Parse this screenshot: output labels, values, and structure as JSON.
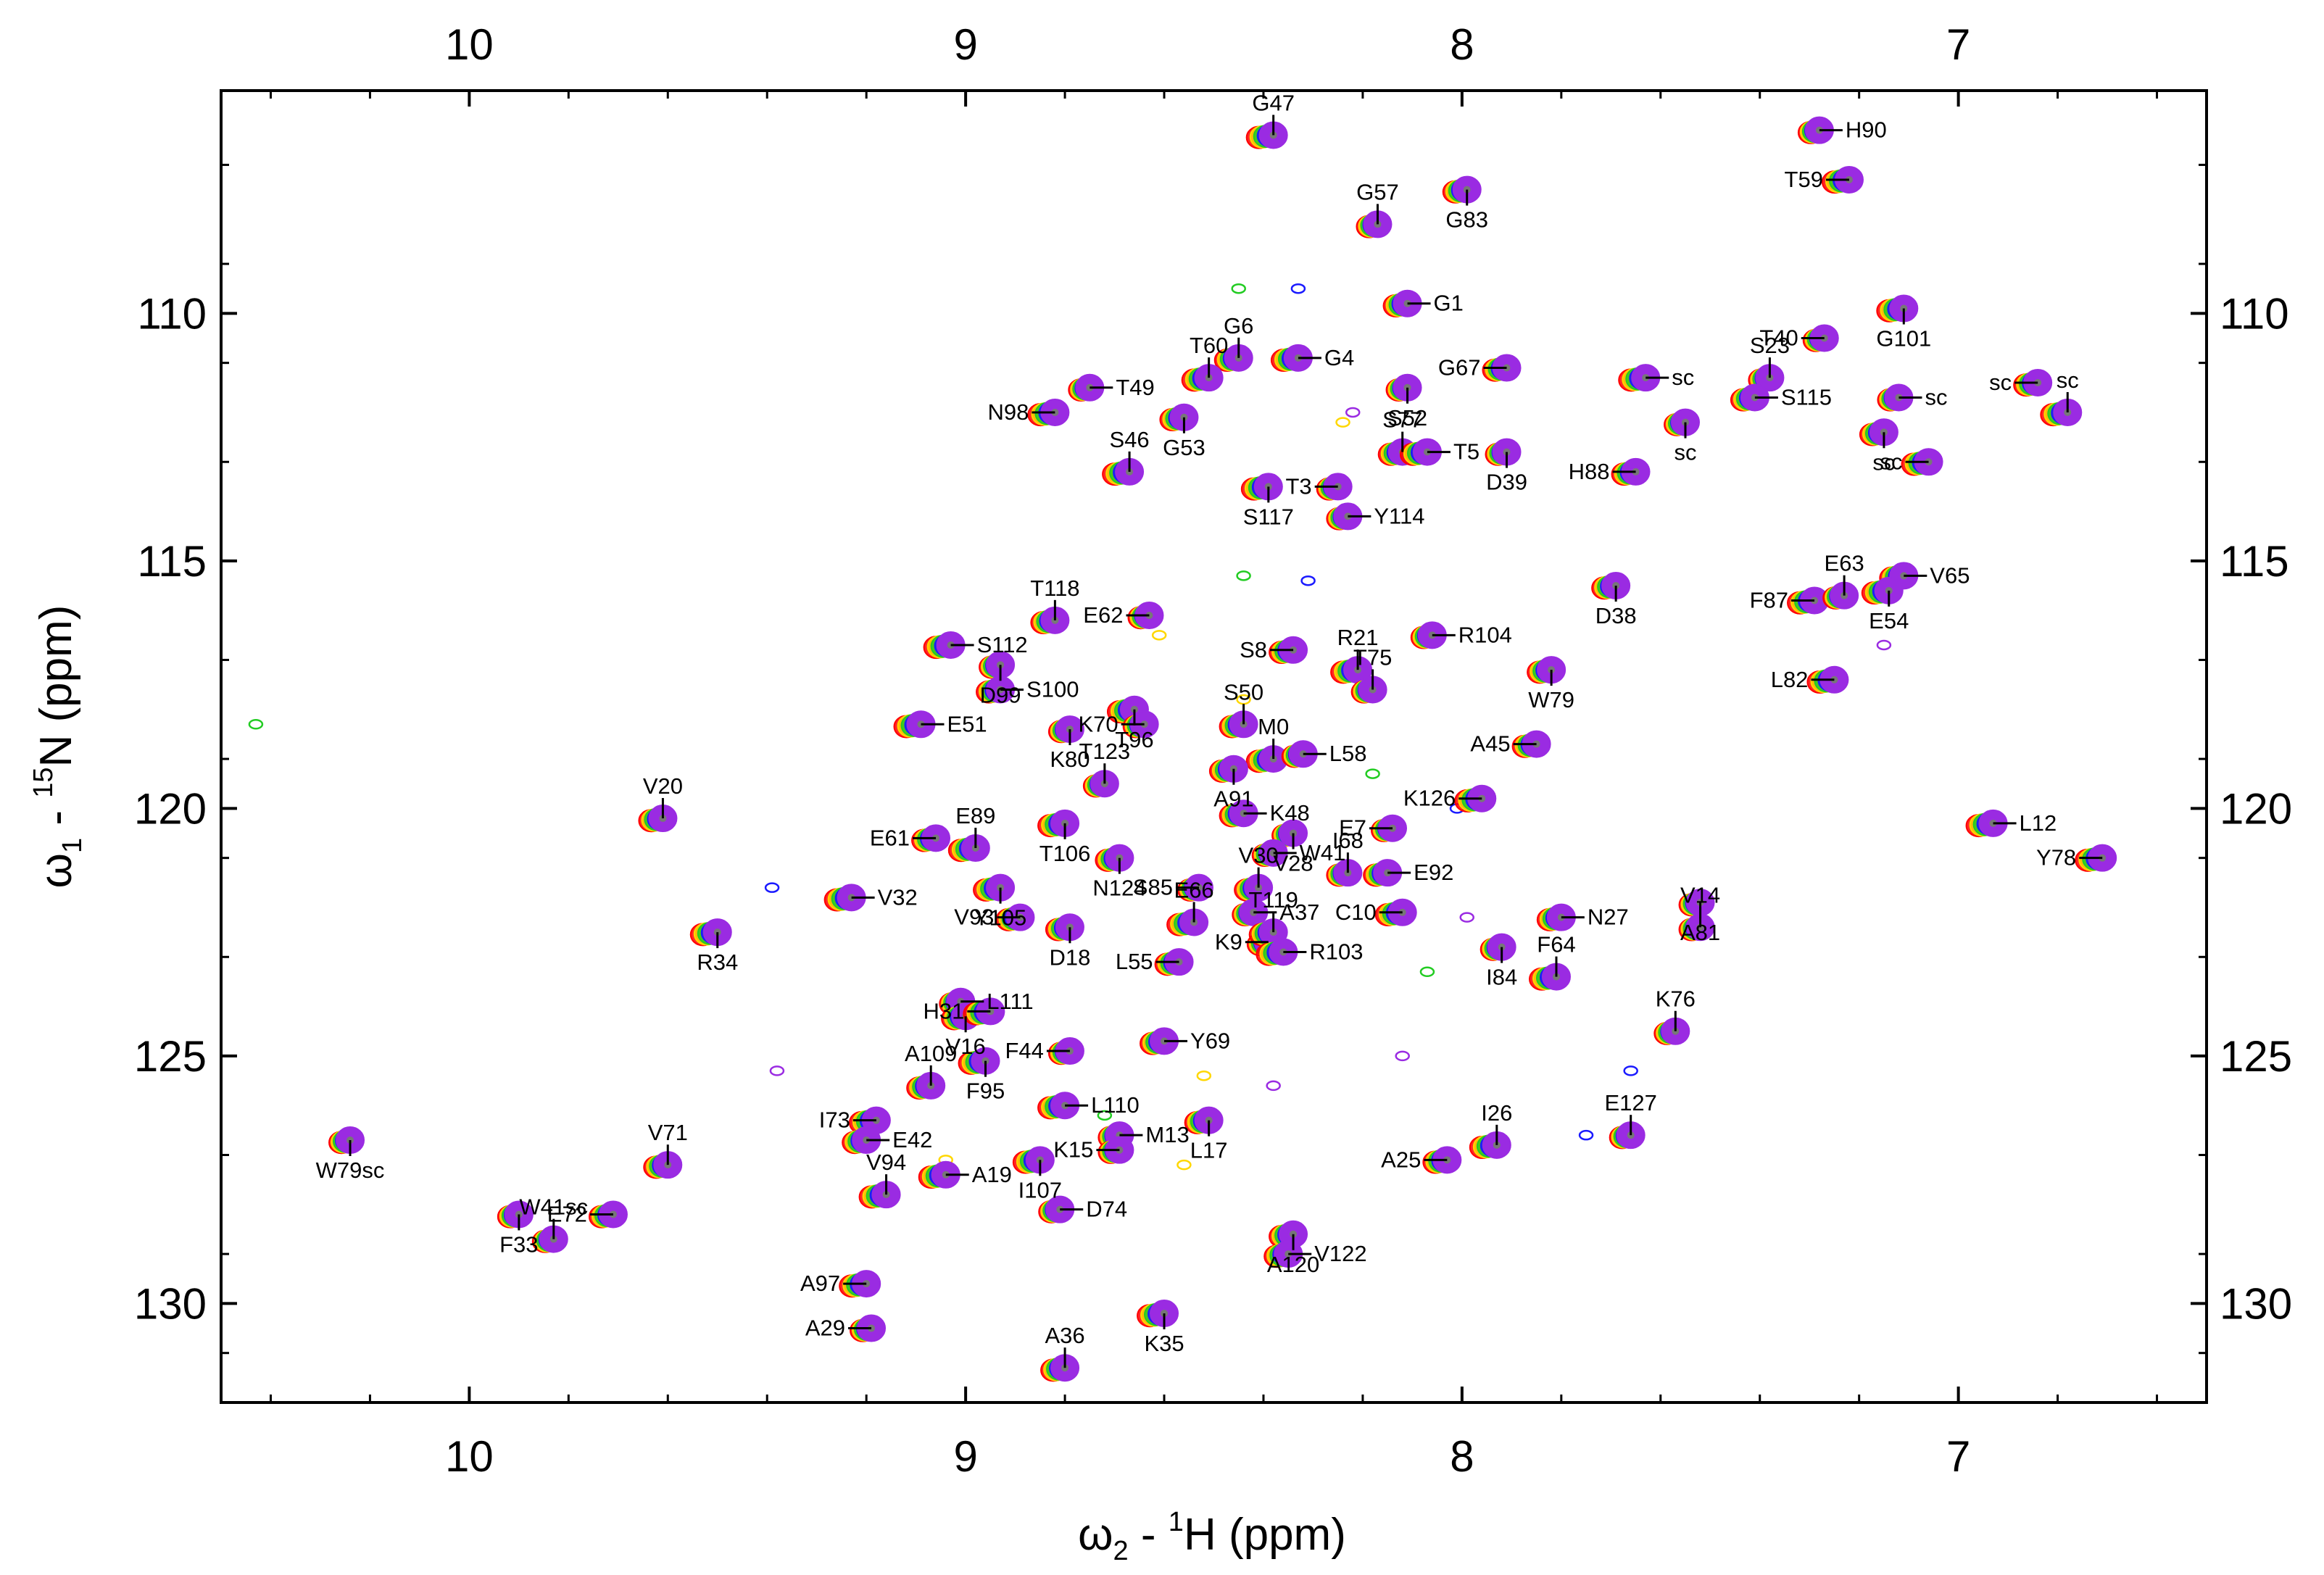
{
  "chart_data": {
    "type": "scatter",
    "title": "",
    "xlabel": {
      "prefix": "ω",
      "sub": "2",
      "mid": " - ",
      "sup": "1",
      "nucleus": "H",
      "unit": "  (ppm)"
    },
    "ylabel": {
      "prefix": "ω",
      "sub": "1",
      "mid": " - ",
      "sup": "15",
      "nucleus": "N",
      "unit": "  (ppm)"
    },
    "xlim": [
      10.5,
      6.5
    ],
    "ylim": [
      132,
      105.5
    ],
    "x_ticks": [
      10,
      9,
      8,
      7
    ],
    "y_ticks": [
      110,
      115,
      120,
      125,
      130
    ],
    "x_tick_labels": [
      "10",
      "9",
      "8",
      "7"
    ],
    "y_tick_labels": [
      "110",
      "115",
      "120",
      "125",
      "130"
    ],
    "series_colors": [
      "#ff0000",
      "#ffd700",
      "#22cc22",
      "#1a1aff",
      "#9a2be2"
    ],
    "reference_color": "#777777",
    "peaks": [
      {
        "label": "G47",
        "h": 8.38,
        "n": 106.4
      },
      {
        "label": "H90",
        "h": 7.28,
        "n": 106.3
      },
      {
        "label": "G83",
        "h": 7.99,
        "n": 107.5
      },
      {
        "label": "T59",
        "h": 7.22,
        "n": 107.3
      },
      {
        "label": "G57",
        "h": 8.17,
        "n": 108.2
      },
      {
        "label": "G1",
        "h": 8.11,
        "n": 109.8
      },
      {
        "label": "G101",
        "h": 7.11,
        "n": 109.9
      },
      {
        "label": "T40",
        "h": 7.27,
        "n": 110.5
      },
      {
        "label": "G6",
        "h": 8.45,
        "n": 110.9
      },
      {
        "label": "G4",
        "h": 8.33,
        "n": 110.9
      },
      {
        "label": "S52",
        "h": 8.11,
        "n": 111.5
      },
      {
        "label": "G67",
        "h": 7.91,
        "n": 111.1
      },
      {
        "label": "T60",
        "h": 8.51,
        "n": 111.3
      },
      {
        "label": "T49",
        "h": 8.75,
        "n": 111.5
      },
      {
        "label": "G53",
        "h": 8.56,
        "n": 112.1
      },
      {
        "label": "N98",
        "h": 8.82,
        "n": 112.0
      },
      {
        "label": "S23",
        "h": 7.38,
        "n": 111.3
      },
      {
        "label": "S115",
        "h": 7.41,
        "n": 111.7
      },
      {
        "label": "S117",
        "h": 8.39,
        "n": 113.5
      },
      {
        "label": "T3",
        "h": 8.25,
        "n": 113.5
      },
      {
        "label": "S77",
        "h": 8.12,
        "n": 112.8
      },
      {
        "label": "T5",
        "h": 8.07,
        "n": 112.8
      },
      {
        "label": "D39",
        "h": 7.91,
        "n": 112.8
      },
      {
        "label": "H88",
        "h": 7.65,
        "n": 113.2
      },
      {
        "label": "S46",
        "h": 8.67,
        "n": 113.2
      },
      {
        "label": "Y114",
        "h": 8.23,
        "n": 114.1
      },
      {
        "label": "D38",
        "h": 7.69,
        "n": 115.5
      },
      {
        "label": "F87",
        "h": 7.29,
        "n": 115.8
      },
      {
        "label": "E63",
        "h": 7.23,
        "n": 115.7
      },
      {
        "label": "V65",
        "h": 7.11,
        "n": 115.3
      },
      {
        "label": "E54",
        "h": 7.14,
        "n": 115.6
      },
      {
        "label": "E62",
        "h": 8.63,
        "n": 116.1
      },
      {
        "label": "T118",
        "h": 8.82,
        "n": 116.2
      },
      {
        "label": "S112",
        "h": 9.03,
        "n": 116.7
      },
      {
        "label": "D99",
        "h": 8.93,
        "n": 117.1
      },
      {
        "label": "S8",
        "h": 8.34,
        "n": 116.8
      },
      {
        "label": "R21",
        "h": 8.21,
        "n": 117.2
      },
      {
        "label": "R104",
        "h": 8.06,
        "n": 116.5
      },
      {
        "label": "W79",
        "h": 7.82,
        "n": 117.2
      },
      {
        "label": "L82",
        "h": 7.25,
        "n": 117.4
      },
      {
        "label": "T75",
        "h": 8.18,
        "n": 117.6
      },
      {
        "label": "S100",
        "h": 8.93,
        "n": 117.6
      },
      {
        "label": "T96",
        "h": 8.66,
        "n": 118.0
      },
      {
        "label": "K70",
        "h": 8.64,
        "n": 118.3
      },
      {
        "label": "S50",
        "h": 8.44,
        "n": 118.3
      },
      {
        "label": "E51",
        "h": 9.09,
        "n": 118.3
      },
      {
        "label": "K80",
        "h": 8.79,
        "n": 118.4
      },
      {
        "label": "A45",
        "h": 7.85,
        "n": 118.7
      },
      {
        "label": "M0",
        "h": 8.38,
        "n": 119.0
      },
      {
        "label": "L58",
        "h": 8.32,
        "n": 118.9
      },
      {
        "label": "A91",
        "h": 8.46,
        "n": 119.2
      },
      {
        "label": "K126",
        "h": 7.96,
        "n": 119.8
      },
      {
        "label": "T123",
        "h": 8.72,
        "n": 119.5
      },
      {
        "label": "K48",
        "h": 8.44,
        "n": 120.1
      },
      {
        "label": "T106",
        "h": 8.8,
        "n": 120.3
      },
      {
        "label": "E7",
        "h": 8.14,
        "n": 120.4
      },
      {
        "label": "V20",
        "h": 9.61,
        "n": 120.2
      },
      {
        "label": "L12",
        "h": 6.93,
        "n": 120.3
      },
      {
        "label": "V28",
        "h": 8.34,
        "n": 120.5
      },
      {
        "label": "E61",
        "h": 9.06,
        "n": 120.6
      },
      {
        "label": "E89",
        "h": 8.98,
        "n": 120.8
      },
      {
        "label": "W41",
        "h": 8.38,
        "n": 120.9
      },
      {
        "label": "N124",
        "h": 8.69,
        "n": 121.0
      },
      {
        "label": "Y78",
        "h": 6.71,
        "n": 121.0
      },
      {
        "label": "I68",
        "h": 8.23,
        "n": 121.3
      },
      {
        "label": "E92",
        "h": 8.15,
        "n": 121.3
      },
      {
        "label": "Y105",
        "h": 8.93,
        "n": 121.6
      },
      {
        "label": "S85",
        "h": 8.53,
        "n": 121.6
      },
      {
        "label": "V30",
        "h": 8.41,
        "n": 121.6
      },
      {
        "label": "V32",
        "h": 9.23,
        "n": 121.8
      },
      {
        "label": "A81",
        "h": 7.52,
        "n": 121.9
      },
      {
        "label": "V93",
        "h": 8.89,
        "n": 122.2
      },
      {
        "label": "E66",
        "h": 8.54,
        "n": 122.3
      },
      {
        "label": "A37",
        "h": 8.42,
        "n": 122.1
      },
      {
        "label": "D18",
        "h": 8.79,
        "n": 122.4
      },
      {
        "label": "C10",
        "h": 8.12,
        "n": 122.1
      },
      {
        "label": "V14",
        "h": 7.52,
        "n": 122.4
      },
      {
        "label": "N27",
        "h": 7.8,
        "n": 122.2
      },
      {
        "label": "R34",
        "h": 9.5,
        "n": 122.5
      },
      {
        "label": "K9",
        "h": 8.39,
        "n": 122.7
      },
      {
        "label": "T119",
        "h": 8.38,
        "n": 122.5
      },
      {
        "label": "R103",
        "h": 8.36,
        "n": 122.9
      },
      {
        "label": "I84",
        "h": 7.92,
        "n": 122.8
      },
      {
        "label": "L55",
        "h": 8.57,
        "n": 123.1
      },
      {
        "label": "F64",
        "h": 7.81,
        "n": 123.4
      },
      {
        "label": "L111",
        "h": 9.01,
        "n": 123.9
      },
      {
        "label": "V16",
        "h": 9.0,
        "n": 124.2
      },
      {
        "label": "H31",
        "h": 8.95,
        "n": 124.1
      },
      {
        "label": "K76",
        "h": 7.57,
        "n": 124.5
      },
      {
        "label": "Y69",
        "h": 8.6,
        "n": 124.7
      },
      {
        "label": "F95",
        "h": 8.96,
        "n": 125.1
      },
      {
        "label": "F44",
        "h": 8.79,
        "n": 124.9
      },
      {
        "label": "A109",
        "h": 9.07,
        "n": 125.6
      },
      {
        "label": "L110",
        "h": 8.8,
        "n": 126.0
      },
      {
        "label": "W79sc",
        "h": 10.24,
        "n": 126.7
      },
      {
        "label": "A25",
        "h": 8.03,
        "n": 127.1
      },
      {
        "label": "I26",
        "h": 7.93,
        "n": 126.8
      },
      {
        "label": "M13",
        "h": 8.69,
        "n": 126.6
      },
      {
        "label": "L17",
        "h": 8.51,
        "n": 126.3
      },
      {
        "label": "I73",
        "h": 9.18,
        "n": 126.3
      },
      {
        "label": "E127",
        "h": 7.66,
        "n": 126.6
      },
      {
        "label": "E42",
        "h": 9.2,
        "n": 126.7
      },
      {
        "label": "I107",
        "h": 8.85,
        "n": 127.1
      },
      {
        "label": "K15",
        "h": 8.69,
        "n": 126.9
      },
      {
        "label": "V71",
        "h": 9.6,
        "n": 127.2
      },
      {
        "label": "A19",
        "h": 9.04,
        "n": 127.4
      },
      {
        "label": "F33",
        "h": 9.9,
        "n": 128.2
      },
      {
        "label": "E72",
        "h": 9.71,
        "n": 128.2
      },
      {
        "label": "V94",
        "h": 9.16,
        "n": 127.8
      },
      {
        "label": "D74",
        "h": 8.81,
        "n": 128.1
      },
      {
        "label": "A120",
        "h": 8.34,
        "n": 128.6
      },
      {
        "label": "A97",
        "h": 9.2,
        "n": 129.6
      },
      {
        "label": "W41sc",
        "h": 9.83,
        "n": 128.7
      },
      {
        "label": "V122",
        "h": 8.35,
        "n": 129.0
      },
      {
        "label": "K35",
        "h": 8.6,
        "n": 130.2
      },
      {
        "label": "A29",
        "h": 9.19,
        "n": 130.5
      },
      {
        "label": "A36",
        "h": 8.8,
        "n": 131.3
      },
      {
        "label": "sc",
        "h": 7.63,
        "n": 111.3
      },
      {
        "label": "sc",
        "h": 7.55,
        "n": 112.2
      },
      {
        "label": "sc",
        "h": 6.84,
        "n": 111.4
      },
      {
        "label": "sc",
        "h": 6.78,
        "n": 112.0
      },
      {
        "label": "sc",
        "h": 7.12,
        "n": 111.7
      },
      {
        "label": "sc",
        "h": 7.15,
        "n": 112.4
      },
      {
        "label": "sc",
        "h": 7.06,
        "n": 113.0
      }
    ],
    "noise_peaks": [
      {
        "h": 8.45,
        "n": 109.5
      },
      {
        "h": 8.33,
        "n": 109.5
      },
      {
        "h": 8.22,
        "n": 112.0
      },
      {
        "h": 8.24,
        "n": 112.2
      },
      {
        "h": 8.44,
        "n": 115.3
      },
      {
        "h": 8.31,
        "n": 115.4
      },
      {
        "h": 7.15,
        "n": 116.7
      },
      {
        "h": 8.44,
        "n": 117.8
      },
      {
        "h": 8.18,
        "n": 119.3
      },
      {
        "h": 8.01,
        "n": 120.0
      },
      {
        "h": 7.99,
        "n": 122.2
      },
      {
        "h": 8.61,
        "n": 116.5
      },
      {
        "h": 10.43,
        "n": 118.3
      },
      {
        "h": 9.39,
        "n": 121.6
      },
      {
        "h": 9.38,
        "n": 125.3
      },
      {
        "h": 8.52,
        "n": 125.4
      },
      {
        "h": 8.07,
        "n": 123.3
      },
      {
        "h": 7.66,
        "n": 125.3
      },
      {
        "h": 8.38,
        "n": 125.6
      },
      {
        "h": 8.56,
        "n": 127.2
      },
      {
        "h": 8.72,
        "n": 126.2
      },
      {
        "h": 7.75,
        "n": 126.6
      },
      {
        "h": 8.12,
        "n": 125.0
      },
      {
        "h": 9.04,
        "n": 127.1
      }
    ]
  }
}
